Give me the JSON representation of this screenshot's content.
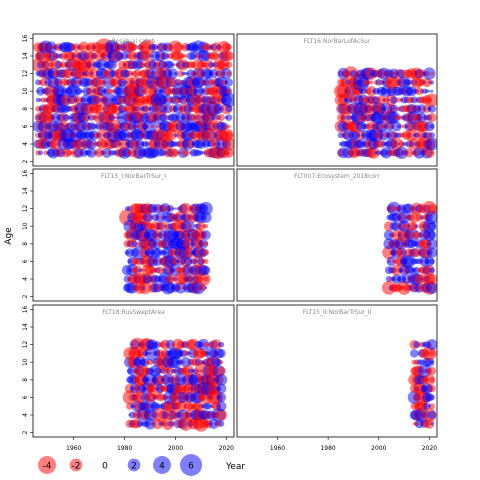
{
  "chart_data": {
    "type": "scatter",
    "ylabel": "Age",
    "xlabel": "Year",
    "xlim": [
      1944,
      2023
    ],
    "ylim": [
      1.5,
      16.5
    ],
    "x_ticks": [
      1960,
      1980,
      2000,
      2020
    ],
    "y_ticks": [
      2,
      4,
      6,
      8,
      10,
      12,
      14,
      16
    ],
    "colors": {
      "positive": "#0000ff",
      "negative": "#ff0000",
      "alpha": 0.5
    },
    "legend": {
      "values": [
        -4,
        -2,
        0,
        2,
        4,
        6
      ],
      "title": "Year"
    },
    "panels": [
      {
        "title": "Residual catch",
        "years": [
          1946,
          2021
        ],
        "ages": [
          3,
          15
        ]
      },
      {
        "title": "FLT16:NorBarLofAcSur",
        "years": [
          1985,
          2021
        ],
        "ages": [
          3,
          12
        ]
      },
      {
        "title": "FLT15_I:NorBarTrSur_I",
        "years": [
          1981,
          2012
        ],
        "ages": [
          3,
          12
        ]
      },
      {
        "title": "FLT007:Ecosystem_2018corr",
        "years": [
          2004,
          2021
        ],
        "ages": [
          3,
          12
        ]
      },
      {
        "title": "FLT18:RusSweptArea",
        "years": [
          1982,
          2018
        ],
        "ages": [
          3,
          12
        ]
      },
      {
        "title": "FLT15_II:NorBarTrSur_II",
        "years": [
          2014,
          2021
        ],
        "ages": [
          3,
          12
        ]
      }
    ]
  }
}
